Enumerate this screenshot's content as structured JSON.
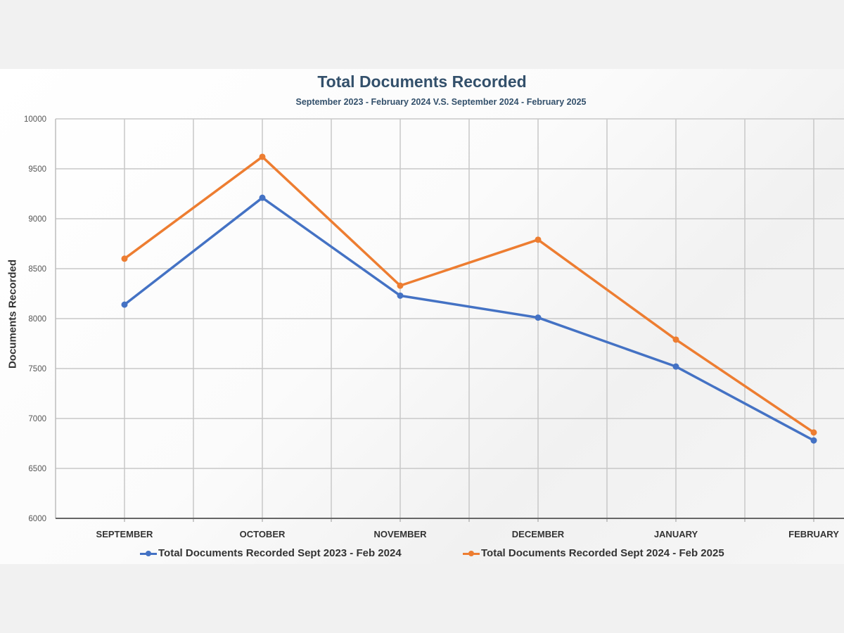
{
  "chart_data": {
    "type": "line",
    "title": "Total Documents Recorded",
    "subtitle": "September 2023 - February 2024 V.S. September 2024 - February 2025",
    "xlabel": "",
    "ylabel": "Documents Recorded",
    "categories": [
      "SEPTEMBER",
      "OCTOBER",
      "NOVEMBER",
      "DECEMBER",
      "JANUARY",
      "FEBRUARY"
    ],
    "ylim": [
      6000,
      10000
    ],
    "yticks": [
      6000,
      6500,
      7000,
      7500,
      8000,
      8500,
      9000,
      9500,
      10000
    ],
    "grid": true,
    "legend_position": "bottom",
    "series": [
      {
        "name": "Total Documents Recorded Sept 2023 - Feb 2024",
        "color": "#4472c4",
        "values": [
          8140,
          9210,
          8230,
          8010,
          7520,
          6780
        ]
      },
      {
        "name": "Total Documents Recorded Sept 2024 - Feb 2025",
        "color": "#ed7d31",
        "values": [
          8600,
          9620,
          8330,
          8790,
          7790,
          6860
        ]
      }
    ]
  }
}
